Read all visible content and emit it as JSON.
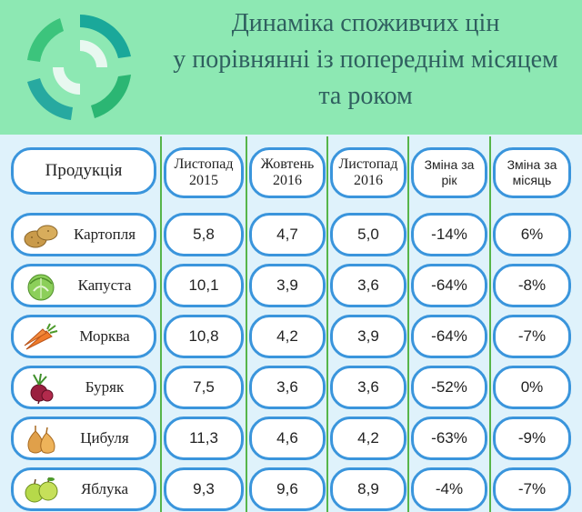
{
  "title": {
    "line1": "Динаміка споживчих цін",
    "line2": "у порівнянні із попереднім місяцем",
    "line3": "та роком"
  },
  "header": {
    "product": "Продукція",
    "col1_l1": "Листопад",
    "col1_l2": "2015",
    "col2_l1": "Жовтень",
    "col2_l2": "2016",
    "col3_l1": "Листопад",
    "col3_l2": "2016",
    "col4_l1": "Зміна за",
    "col4_l2": "рік",
    "col5_l1": "Зміна за",
    "col5_l2": "місяць"
  },
  "chart_data": {
    "type": "table",
    "title": "Динаміка споживчих цін у порівнянні із попереднім місяцем та роком",
    "columns": [
      "Продукція",
      "Листопад 2015",
      "Жовтень 2016",
      "Листопад 2016",
      "Зміна за рік",
      "Зміна за місяць"
    ],
    "rows": [
      {
        "product": "Картопля",
        "icon": "potato-icon",
        "nov2015": "5,8",
        "oct2016": "4,7",
        "nov2016": "5,0",
        "year_change": "-14%",
        "month_change": "6%"
      },
      {
        "product": "Капуста",
        "icon": "cabbage-icon",
        "nov2015": "10,1",
        "oct2016": "3,9",
        "nov2016": "3,6",
        "year_change": "-64%",
        "month_change": "-8%"
      },
      {
        "product": "Морква",
        "icon": "carrot-icon",
        "nov2015": "10,8",
        "oct2016": "4,2",
        "nov2016": "3,9",
        "year_change": "-64%",
        "month_change": "-7%"
      },
      {
        "product": "Буряк",
        "icon": "beet-icon",
        "nov2015": "7,5",
        "oct2016": "3,6",
        "nov2016": "3,6",
        "year_change": "-52%",
        "month_change": "0%"
      },
      {
        "product": "Цибуля",
        "icon": "onion-icon",
        "nov2015": "11,3",
        "oct2016": "4,6",
        "nov2016": "4,2",
        "year_change": "-63%",
        "month_change": "-9%"
      },
      {
        "product": "Яблука",
        "icon": "apple-icon",
        "nov2015": "9,3",
        "oct2016": "9,6",
        "nov2016": "8,9",
        "year_change": "-4%",
        "month_change": "-7%"
      }
    ]
  },
  "colors": {
    "header_bg": "#8de8b3",
    "title_text": "#2f5f5f",
    "cell_border": "#3a95dc",
    "grid_line": "#56b54a",
    "table_bg": "#dff2fb"
  }
}
